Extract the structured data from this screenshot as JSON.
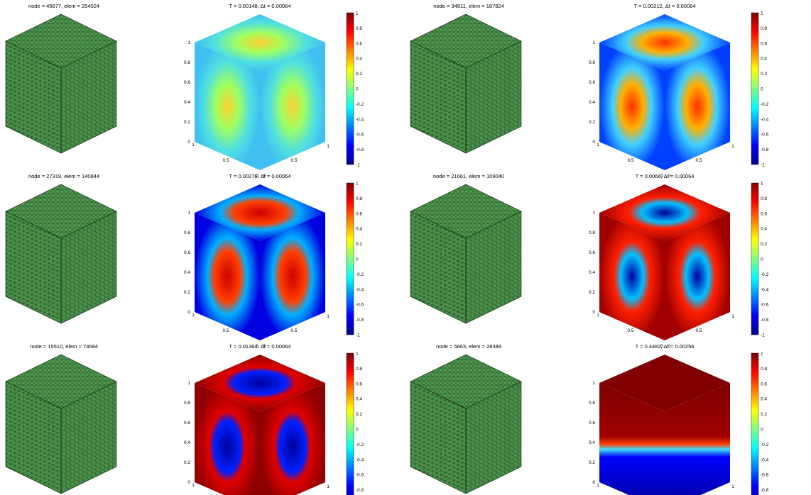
{
  "panels": [
    {
      "mesh_title": "node = 45677,  elem = 254024",
      "field_title": "T = 0.00148,  Δt = 0.00064",
      "pattern": 1
    },
    {
      "mesh_title": "node = 34811,  elem = 187824",
      "field_title": "T = 0.00212,  Δt = 0.00064",
      "pattern": 2
    },
    {
      "mesh_title": "node = 27319,  elem = 140844",
      "field_title": "T = 0.00276,  Δt = 0.00064",
      "pattern": 3
    },
    {
      "mesh_title": "node = 21661,  elem = 109040",
      "field_title": "T = 0.0066,  Δt = 0.00064",
      "pattern": 4
    },
    {
      "mesh_title": "node = 15510,  elem = 74684",
      "field_title": "T = 0.01364,  Δt = 0.00064",
      "pattern": 5
    },
    {
      "mesh_title": "node = 5663,  elem = 28388",
      "field_title": "T = 0.4482,  Δt = 0.00256",
      "pattern": 6
    }
  ],
  "z_ticks": [
    "0",
    "0.2",
    "0.4",
    "0.6",
    "0.8",
    "1"
  ],
  "left_ticks": [
    "0",
    "0.5",
    "1"
  ],
  "right_ticks": [
    "0",
    "0.5",
    "1"
  ],
  "colorbar": {
    "ticks": [
      "1",
      "0.8",
      "0.6",
      "0.4",
      "0.2",
      "0",
      "-0.2",
      "-0.4",
      "-0.6",
      "-0.8",
      "-1"
    ],
    "colors": [
      "#00008f",
      "#0000ff",
      "#0080ff",
      "#00ffff",
      "#80ff80",
      "#ffff00",
      "#ff8000",
      "#ff0000",
      "#800000"
    ]
  },
  "mesh_colors": {
    "fill": "#4f9a4f",
    "line": "#0a200a"
  }
}
